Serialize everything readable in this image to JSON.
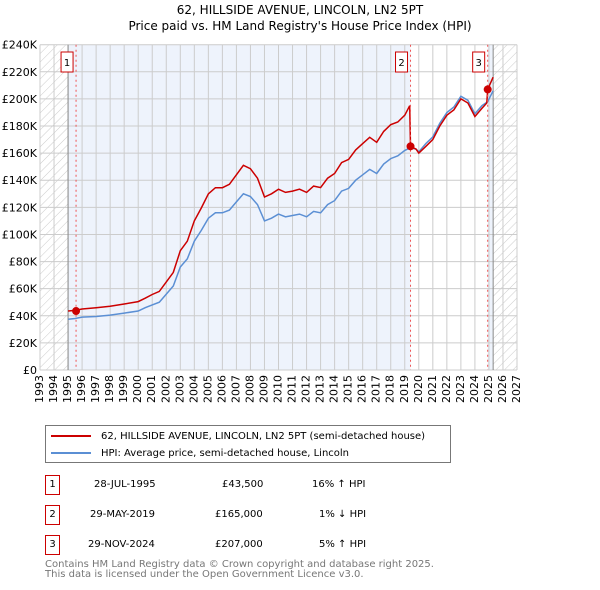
{
  "title": "62, HILLSIDE AVENUE, LINCOLN, LN2 5PT",
  "subtitle": "Price paid vs. HM Land Registry's House Price Index (HPI)",
  "chart_data": {
    "type": "line",
    "title": "62, HILLSIDE AVENUE, LINCOLN, LN2 5PT",
    "subtitle": "Price paid vs. HM Land Registry's House Price Index (HPI)",
    "xlim": [
      1993,
      2027
    ],
    "ylim": [
      0,
      240000
    ],
    "x_ticks": [
      1993,
      1994,
      1995,
      1996,
      1997,
      1998,
      1999,
      2000,
      2001,
      2002,
      2003,
      2004,
      2005,
      2006,
      2007,
      2008,
      2009,
      2010,
      2011,
      2012,
      2013,
      2014,
      2015,
      2016,
      2017,
      2018,
      2019,
      2020,
      2021,
      2022,
      2023,
      2024,
      2025,
      2026,
      2027
    ],
    "y_ticks": [
      0,
      20000,
      40000,
      60000,
      80000,
      100000,
      120000,
      140000,
      160000,
      180000,
      200000,
      220000,
      240000
    ],
    "y_tick_labels": [
      "£0",
      "£20K",
      "£40K",
      "£60K",
      "£80K",
      "£100K",
      "£120K",
      "£140K",
      "£160K",
      "£180K",
      "£200K",
      "£220K",
      "£240K"
    ],
    "grid": true,
    "data_range": [
      1995,
      2025.3
    ],
    "series": [
      {
        "name": "62, HILLSIDE AVENUE, LINCOLN, LN2 5PT (semi-detached house)",
        "color": "#cc0000",
        "x": [
          1995.0,
          1995.5,
          1996,
          1997,
          1998,
          1999,
          2000,
          2000.5,
          2001,
          2001.5,
          2002,
          2002.5,
          2003,
          2003.5,
          2004,
          2004.5,
          2005,
          2005.5,
          2006,
          2006.5,
          2007,
          2007.5,
          2008,
          2008.5,
          2009,
          2009.5,
          2010,
          2010.5,
          2011,
          2011.5,
          2012,
          2012.5,
          2013,
          2013.5,
          2014,
          2014.5,
          2015,
          2015.5,
          2016,
          2016.5,
          2017,
          2017.5,
          2018,
          2018.5,
          2019,
          2019.35,
          2019.41,
          2019.8,
          2020,
          2020.5,
          2021,
          2021.5,
          2022,
          2022.5,
          2023,
          2023.5,
          2024,
          2024.5,
          2024.85,
          2024.91,
          2025.3
        ],
        "y": [
          43500,
          44000,
          45000,
          46000,
          47000,
          48700,
          50500,
          53000,
          55700,
          58000,
          65000,
          72000,
          88000,
          95000,
          110000,
          119500,
          130000,
          134500,
          134500,
          137000,
          144000,
          151000,
          148500,
          141500,
          127600,
          130000,
          133400,
          131000,
          132000,
          133400,
          131000,
          135700,
          134600,
          141500,
          145000,
          153000,
          155400,
          162400,
          167000,
          171700,
          168000,
          176000,
          181000,
          183000,
          188000,
          195000,
          165000,
          163000,
          160000,
          165000,
          170000,
          180000,
          188000,
          192000,
          200000,
          197000,
          187000,
          193000,
          197000,
          207000,
          216000
        ]
      },
      {
        "name": "HPI: Average price, semi-detached house, Lincoln",
        "color": "#5b8fd4",
        "x": [
          1995.0,
          1995.5,
          1996,
          1997,
          1998,
          1999,
          2000,
          2000.5,
          2001,
          2001.5,
          2002,
          2002.5,
          2003,
          2003.5,
          2004,
          2004.5,
          2005,
          2005.5,
          2006,
          2006.5,
          2007,
          2007.5,
          2008,
          2008.5,
          2009,
          2009.5,
          2010,
          2010.5,
          2011,
          2011.5,
          2012,
          2012.5,
          2013,
          2013.5,
          2014,
          2014.5,
          2015,
          2015.5,
          2016,
          2016.5,
          2017,
          2017.5,
          2018,
          2018.5,
          2019,
          2019.41,
          2019.8,
          2020,
          2020.5,
          2021,
          2021.5,
          2022,
          2022.5,
          2023,
          2023.5,
          2024,
          2024.5,
          2024.91,
          2025.3
        ],
        "y": [
          37500,
          38000,
          39000,
          39500,
          40500,
          42000,
          43500,
          46000,
          48000,
          50000,
          56000,
          62000,
          76000,
          82000,
          95000,
          103000,
          112000,
          116000,
          116000,
          118000,
          124000,
          130000,
          128000,
          122000,
          110000,
          112000,
          115000,
          113000,
          114000,
          115000,
          113000,
          117000,
          116000,
          122000,
          125000,
          132000,
          134000,
          140000,
          144000,
          148000,
          145000,
          152000,
          156000,
          158000,
          162000,
          164000,
          163000,
          161000,
          167000,
          172000,
          182000,
          190000,
          194000,
          202000,
          199000,
          189000,
          195000,
          198000,
          206000
        ]
      }
    ],
    "sales": [
      {
        "label": "1",
        "x": 1995.57,
        "y": 43500
      },
      {
        "label": "2",
        "x": 2019.41,
        "y": 165000
      },
      {
        "label": "3",
        "x": 2024.91,
        "y": 207000
      }
    ]
  },
  "legend": {
    "property": "62, HILLSIDE AVENUE, LINCOLN, LN2 5PT (semi-detached house)",
    "hpi": "HPI: Average price, semi-detached house, Lincoln"
  },
  "transactions": [
    {
      "num": "1",
      "date": "28-JUL-1995",
      "price": "£43,500",
      "hpi": "16% ↑ HPI"
    },
    {
      "num": "2",
      "date": "29-MAY-2019",
      "price": "£165,000",
      "hpi": "1% ↓ HPI"
    },
    {
      "num": "3",
      "date": "29-NOV-2024",
      "price": "£207,000",
      "hpi": "5% ↑ HPI"
    }
  ],
  "footer": {
    "line1": "Contains HM Land Registry data © Crown copyright and database right 2025.",
    "line2": "This data is licensed under the Open Government Licence v3.0."
  }
}
